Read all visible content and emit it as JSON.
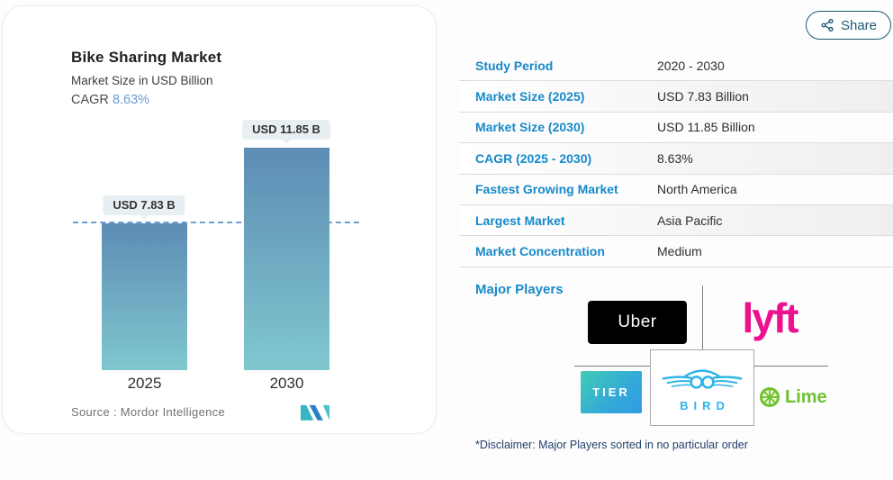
{
  "share": {
    "label": "Share"
  },
  "chart_card": {
    "title": "Bike Sharing Market",
    "subtitle": "Market Size in USD Billion",
    "cagr_label": "CAGR",
    "cagr_value": "8.63%",
    "source_text": "Source :  Mordor Intelligence"
  },
  "chart_data": {
    "type": "bar",
    "title": "Bike Sharing Market",
    "ylabel": "Market Size in USD Billion",
    "categories": [
      "2025",
      "2030"
    ],
    "values": [
      7.83,
      11.85
    ],
    "value_labels": [
      "USD 7.83 B",
      "USD 11.85 B"
    ],
    "reference_line": 7.83,
    "cagr": "8.63%",
    "legend": "none",
    "grid": false,
    "bar_gradient": [
      "#5d8cb5",
      "#80c7cf"
    ],
    "source": "Mordor Intelligence"
  },
  "table": {
    "rows": [
      {
        "label": "Study Period",
        "value": "2020 - 2030"
      },
      {
        "label": "Market Size (2025)",
        "value": "USD 7.83 Billion"
      },
      {
        "label": "Market Size (2030)",
        "value": "USD 11.85 Billion"
      },
      {
        "label": "CAGR (2025 - 2030)",
        "value": "8.63%"
      },
      {
        "label": "Fastest Growing Market",
        "value": "North America"
      },
      {
        "label": "Largest Market",
        "value": "Asia Pacific"
      },
      {
        "label": "Market Concentration",
        "value": "Medium"
      }
    ]
  },
  "major_players": {
    "heading": "Major Players",
    "uber": "Uber",
    "lyft": "lyft",
    "tier": "TIER",
    "bird": "BIRD",
    "lime": "Lime",
    "disclaimer": "*Disclaimer: Major Players sorted in no particular order"
  },
  "colors": {
    "accent_blue": "#1789c9",
    "cagr_blue": "#6b9bd2",
    "dash_line": "#6d9fd4",
    "lyft_pink": "#ec118f",
    "lime_green": "#6fc131",
    "bird_blue": "#2cb3e8",
    "share_teal": "#1c5a74"
  }
}
